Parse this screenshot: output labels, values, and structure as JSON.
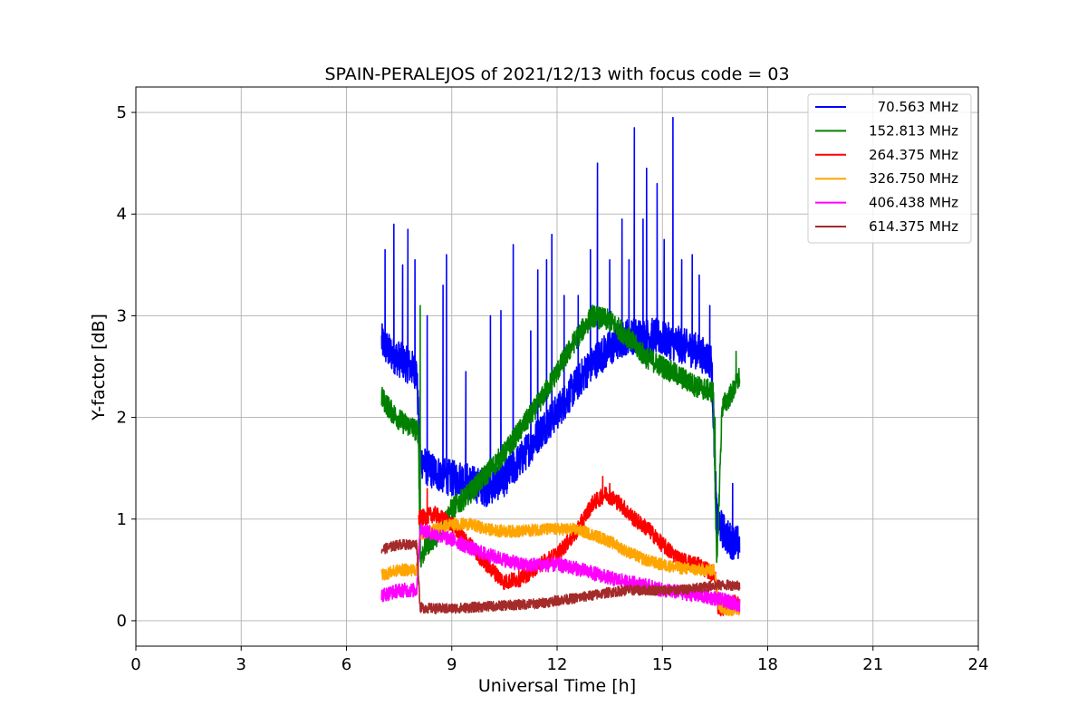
{
  "chart_data": {
    "type": "line",
    "title": "SPAIN-PERALEJOS of 2021/12/13 with focus code = 03",
    "xlabel": "Universal Time [h]",
    "ylabel": "Y-factor [dB]",
    "xlim": [
      0,
      24
    ],
    "ylim": [
      -0.25,
      5.25
    ],
    "xticks": [
      0,
      3,
      6,
      9,
      12,
      15,
      18,
      21,
      24
    ],
    "yticks": [
      0,
      1,
      2,
      3,
      4,
      5
    ],
    "xtick_labels": [
      "0",
      "3",
      "6",
      "9",
      "12",
      "15",
      "18",
      "21",
      "24"
    ],
    "ytick_labels": [
      "0",
      "1",
      "2",
      "3",
      "4",
      "5"
    ],
    "grid": true,
    "legend_position": "top-right",
    "series": [
      {
        "name": "70.563 MHz",
        "color": "#0000ff",
        "x": [
          7.0,
          7.2,
          7.4,
          7.6,
          7.8,
          8.0,
          8.1,
          8.3,
          8.6,
          9.0,
          9.3,
          9.6,
          10.0,
          10.5,
          11.0,
          11.5,
          12.0,
          12.4,
          12.8,
          13.2,
          13.6,
          14.0,
          14.4,
          14.8,
          15.2,
          15.6,
          16.0,
          16.4,
          16.55,
          16.7,
          16.9,
          17.2
        ],
        "y": [
          2.75,
          2.65,
          2.6,
          2.55,
          2.5,
          2.45,
          1.6,
          1.5,
          1.45,
          1.4,
          1.4,
          1.35,
          1.3,
          1.4,
          1.6,
          1.85,
          2.05,
          2.25,
          2.45,
          2.6,
          2.7,
          2.8,
          2.8,
          2.8,
          2.75,
          2.7,
          2.65,
          2.55,
          1.0,
          0.9,
          0.8,
          0.75
        ],
        "noise": 0.18,
        "spikes": [
          [
            7.1,
            3.65
          ],
          [
            7.35,
            3.9
          ],
          [
            7.6,
            3.5
          ],
          [
            7.75,
            3.85
          ],
          [
            7.95,
            3.55
          ],
          [
            8.3,
            3.0
          ],
          [
            8.75,
            3.3
          ],
          [
            8.85,
            3.6
          ],
          [
            9.4,
            2.45
          ],
          [
            10.1,
            3.0
          ],
          [
            10.4,
            3.05
          ],
          [
            10.75,
            3.7
          ],
          [
            11.25,
            2.85
          ],
          [
            11.45,
            3.45
          ],
          [
            11.7,
            3.55
          ],
          [
            11.85,
            3.8
          ],
          [
            12.2,
            3.2
          ],
          [
            12.6,
            3.2
          ],
          [
            12.95,
            3.65
          ],
          [
            13.15,
            4.5
          ],
          [
            13.5,
            3.55
          ],
          [
            13.85,
            3.95
          ],
          [
            14.05,
            3.55
          ],
          [
            14.2,
            4.85
          ],
          [
            14.45,
            3.95
          ],
          [
            14.55,
            4.45
          ],
          [
            14.85,
            4.3
          ],
          [
            15.05,
            3.75
          ],
          [
            15.3,
            4.95
          ],
          [
            15.55,
            3.55
          ],
          [
            15.85,
            3.6
          ],
          [
            16.05,
            3.4
          ],
          [
            16.35,
            3.1
          ],
          [
            17.0,
            1.35
          ]
        ]
      },
      {
        "name": "152.813 MHz",
        "color": "#008000",
        "x": [
          7.0,
          7.3,
          7.6,
          7.9,
          8.05,
          8.1,
          8.3,
          8.6,
          9.0,
          9.5,
          10.0,
          10.5,
          11.0,
          11.5,
          12.0,
          12.5,
          13.0,
          13.5,
          14.0,
          14.5,
          15.0,
          15.5,
          16.0,
          16.45,
          16.55,
          16.7,
          17.0,
          17.2
        ],
        "y": [
          2.2,
          2.05,
          1.95,
          1.9,
          1.85,
          0.6,
          0.75,
          0.85,
          1.1,
          1.25,
          1.45,
          1.65,
          1.9,
          2.15,
          2.45,
          2.75,
          3.0,
          2.95,
          2.8,
          2.6,
          2.5,
          2.4,
          2.3,
          2.25,
          0.5,
          2.1,
          2.25,
          2.4
        ],
        "noise": 0.11,
        "spikes": [
          [
            8.1,
            3.1
          ],
          [
            16.5,
            2.0
          ],
          [
            17.1,
            2.65
          ]
        ]
      },
      {
        "name": "264.375 MHz",
        "color": "#ff0000",
        "x": [
          8.05,
          8.5,
          9.0,
          9.5,
          10.0,
          10.5,
          11.0,
          11.5,
          12.0,
          12.5,
          13.0,
          13.4,
          13.8,
          14.2,
          14.6,
          15.0,
          15.5,
          16.0,
          16.5,
          16.6,
          16.9,
          17.2
        ],
        "y": [
          1.0,
          1.05,
          0.95,
          0.75,
          0.55,
          0.38,
          0.42,
          0.55,
          0.65,
          0.85,
          1.15,
          1.25,
          1.15,
          1.0,
          0.9,
          0.75,
          0.6,
          0.55,
          0.45,
          0.1,
          0.15,
          0.2
        ],
        "noise": 0.08,
        "spikes": [
          [
            8.3,
            1.3
          ],
          [
            13.3,
            1.42
          ],
          [
            13.5,
            1.35
          ]
        ]
      },
      {
        "name": "326.750 MHz",
        "color": "#ffa500",
        "x": [
          7.0,
          7.5,
          8.0,
          8.1,
          8.5,
          9.0,
          9.5,
          10.0,
          10.5,
          11.0,
          11.5,
          12.0,
          12.5,
          13.0,
          13.5,
          14.0,
          14.5,
          15.0,
          15.5,
          16.0,
          16.5,
          16.6,
          16.9,
          17.2
        ],
        "y": [
          0.45,
          0.5,
          0.5,
          0.85,
          0.9,
          0.95,
          0.95,
          0.9,
          0.88,
          0.88,
          0.9,
          0.9,
          0.9,
          0.85,
          0.78,
          0.68,
          0.6,
          0.55,
          0.52,
          0.5,
          0.5,
          0.15,
          0.1,
          0.12
        ],
        "noise": 0.06,
        "spikes": []
      },
      {
        "name": "406.438 MHz",
        "color": "#ff00ff",
        "x": [
          7.0,
          7.5,
          8.0,
          8.1,
          8.5,
          9.0,
          9.5,
          10.0,
          10.5,
          11.0,
          11.5,
          12.0,
          12.5,
          13.0,
          13.5,
          14.0,
          14.5,
          15.0,
          15.5,
          16.0,
          16.5,
          17.0,
          17.2
        ],
        "y": [
          0.25,
          0.3,
          0.3,
          0.9,
          0.85,
          0.8,
          0.72,
          0.65,
          0.6,
          0.55,
          0.55,
          0.55,
          0.52,
          0.47,
          0.42,
          0.38,
          0.35,
          0.3,
          0.28,
          0.25,
          0.22,
          0.18,
          0.15
        ],
        "noise": 0.07,
        "spikes": []
      },
      {
        "name": "614.375 MHz",
        "color": "#a52a2a",
        "x": [
          7.0,
          7.5,
          8.0,
          8.1,
          8.5,
          9.0,
          9.5,
          10.0,
          10.5,
          11.0,
          11.5,
          12.0,
          12.5,
          13.0,
          13.5,
          14.0,
          14.5,
          15.0,
          15.5,
          16.0,
          16.5,
          17.0,
          17.2
        ],
        "y": [
          0.7,
          0.75,
          0.75,
          0.13,
          0.12,
          0.12,
          0.13,
          0.14,
          0.15,
          0.16,
          0.17,
          0.2,
          0.22,
          0.25,
          0.28,
          0.3,
          0.3,
          0.3,
          0.3,
          0.32,
          0.35,
          0.35,
          0.35
        ],
        "noise": 0.05,
        "spikes": []
      }
    ]
  }
}
